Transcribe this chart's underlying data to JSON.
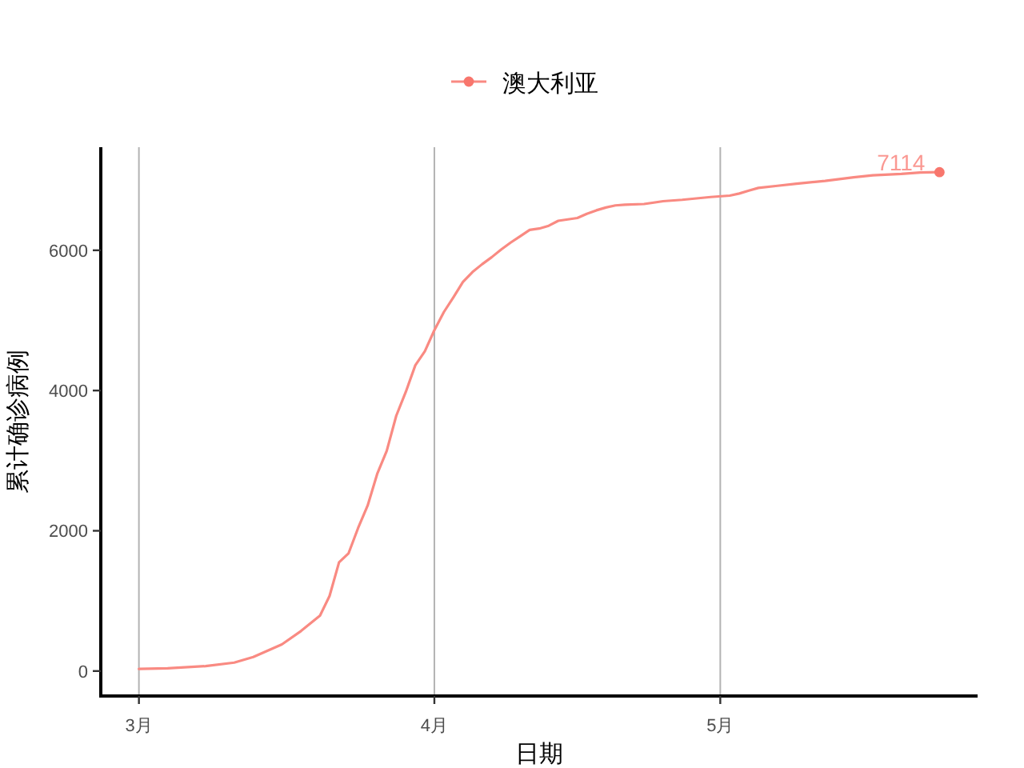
{
  "chart_data": {
    "type": "line",
    "xlabel": "日期",
    "ylabel": "累计确诊病例",
    "x": [
      "--03-01",
      "--03-04",
      "--03-08",
      "--03-11",
      "--03-13",
      "--03-16",
      "--03-18",
      "--03-20",
      "--03-21",
      "--03-22",
      "--03-23",
      "--03-24",
      "--03-25",
      "--03-26",
      "--03-27",
      "--03-28",
      "--03-29",
      "--03-30",
      "--03-31",
      "--04-01",
      "--04-02",
      "--04-03",
      "--04-04",
      "--04-05",
      "--04-06",
      "--04-07",
      "--04-08",
      "--04-09",
      "--04-10",
      "--04-11",
      "--04-12",
      "--04-13",
      "--04-14",
      "--04-15",
      "--04-16",
      "--04-17",
      "--04-18",
      "--04-19",
      "--04-20",
      "--04-21",
      "--04-23",
      "--04-25",
      "--04-27",
      "--04-30",
      "--05-02",
      "--05-03",
      "--05-04",
      "--05-05",
      "--05-07",
      "--05-09",
      "--05-12",
      "--05-15",
      "--05-17",
      "--05-20",
      "--05-22",
      "--05-24"
    ],
    "series": [
      {
        "name": "澳大利亚",
        "color": "#f98a82",
        "values": [
          30,
          40,
          70,
          120,
          200,
          380,
          570,
          790,
          1070,
          1550,
          1680,
          2040,
          2360,
          2810,
          3140,
          3640,
          3980,
          4360,
          4560,
          4860,
          5120,
          5330,
          5550,
          5690,
          5800,
          5900,
          6010,
          6110,
          6200,
          6290,
          6310,
          6350,
          6420,
          6440,
          6460,
          6520,
          6570,
          6610,
          6640,
          6650,
          6660,
          6700,
          6720,
          6760,
          6780,
          6810,
          6850,
          6890,
          6920,
          6950,
          6990,
          7040,
          7070,
          7090,
          7110,
          7114
        ]
      },
      {
        "type": "scatter",
        "color": "#f8766d",
        "x": [
          "--05-24"
        ],
        "values": [
          7114
        ],
        "value_labels": [
          "7114"
        ],
        "marker": "circle"
      }
    ],
    "xlim": [
      "--02-25",
      "--05-28"
    ],
    "xticks": [
      {
        "value": "--03-01",
        "label": "3月"
      },
      {
        "value": "--04-01",
        "label": "4月"
      },
      {
        "value": "--05-01",
        "label": "5月"
      }
    ],
    "ylim": [
      -356,
      7470
    ],
    "yticks": [
      0,
      2000,
      4000,
      6000
    ],
    "grid": "x",
    "legend": "top"
  }
}
